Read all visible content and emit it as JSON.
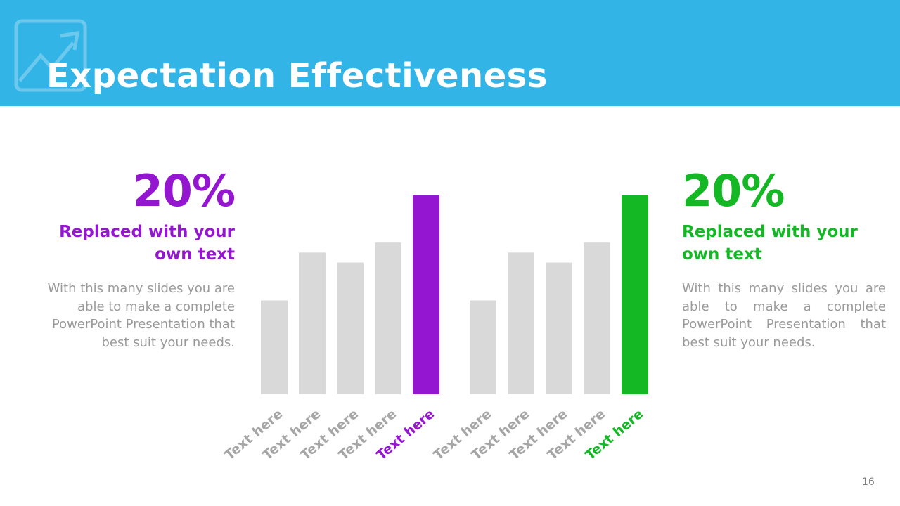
{
  "header": {
    "title": "Expectation Effectiveness",
    "icon": "trend-chart-icon",
    "color": "#33b4e6"
  },
  "left_stat": {
    "percent": "20%",
    "heading_line1": "Replaced with your",
    "heading_line2": "own text",
    "body": "With this many slides you are able to make a complete PowerPoint Presentation that best suit your needs.",
    "color": "#9416d0"
  },
  "right_stat": {
    "percent": "20%",
    "heading_line1": "Replaced with your",
    "heading_line2": "own text",
    "body": "With this many slides you are able to make a complete PowerPoint Presentation that best suit your needs.",
    "color": "#14b825"
  },
  "chart_data": [
    {
      "type": "bar",
      "categories": [
        "Text here",
        "Text here",
        "Text here",
        "Text here",
        "Text here"
      ],
      "values": [
        47,
        71,
        66,
        76,
        100
      ],
      "highlight_index": 4,
      "highlight_color": "#9416d0",
      "base_color": "#d9d9d9",
      "label_color": "#a6a6a6",
      "ylim": [
        0,
        100
      ]
    },
    {
      "type": "bar",
      "categories": [
        "Text here",
        "Text here",
        "Text here",
        "Text here",
        "Text here"
      ],
      "values": [
        47,
        71,
        66,
        76,
        100
      ],
      "highlight_index": 4,
      "highlight_color": "#14b825",
      "base_color": "#d9d9d9",
      "label_color": "#a6a6a6",
      "ylim": [
        0,
        100
      ]
    }
  ],
  "footer": {
    "page_number": "16"
  }
}
